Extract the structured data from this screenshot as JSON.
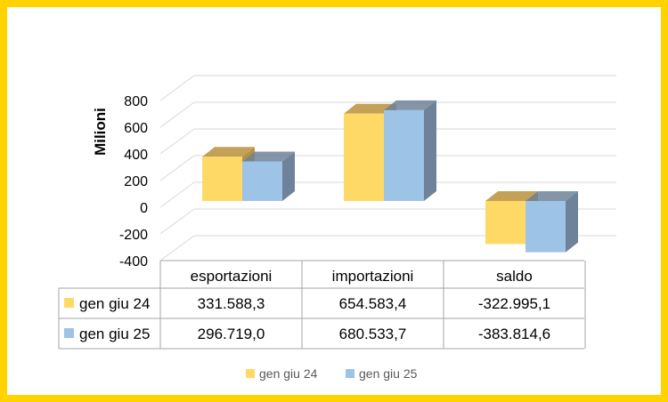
{
  "chart_data": {
    "type": "bar",
    "style": "3d-clustered-column-with-data-table",
    "ylabel": "Milioni",
    "ylim": [
      -400,
      800
    ],
    "yticks": [
      800,
      600,
      400,
      200,
      0,
      -200,
      -400
    ],
    "grid": true,
    "legend_position": "bottom",
    "categories": [
      "esportazioni",
      "importazioni",
      "saldo"
    ],
    "series": [
      {
        "name": "gen giu 24",
        "color": "#FFD966",
        "side_color": "#B8923A",
        "values": [
          331.5883,
          654.5834,
          -322.9951
        ],
        "table_labels": [
          "331.588,3",
          "654.583,4",
          "-322.995,1"
        ]
      },
      {
        "name": "gen giu 25",
        "color": "#9DC3E6",
        "side_color": "#6E8299",
        "values": [
          296.719,
          680.5337,
          -383.8146
        ],
        "table_labels": [
          "296.719,0",
          "680.533,7",
          "-383.814,6"
        ]
      }
    ]
  }
}
